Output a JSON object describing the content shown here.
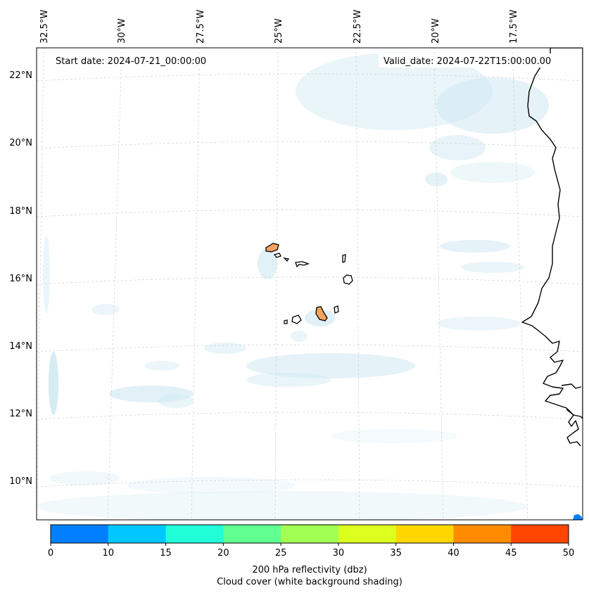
{
  "header": {
    "start_date": "Start date: 2024-07-21_00:00:00",
    "valid_date": "Valid_date: 2024-07-22T15:00:00.00"
  },
  "axes": {
    "longitude_labels": [
      "32.5°W",
      "30°W",
      "27.5°W",
      "25°W",
      "22.5°W",
      "20°W",
      "17.5°W"
    ],
    "latitude_labels": [
      "22°N",
      "20°N",
      "18°N",
      "16°N",
      "14°N",
      "12°N",
      "10°N"
    ]
  },
  "colorbar": {
    "ticks": [
      "0",
      "10",
      "15",
      "20",
      "25",
      "30",
      "35",
      "40",
      "45",
      "50"
    ],
    "colors": [
      "#0080ff",
      "#00c8ff",
      "#20ffd8",
      "#60ff90",
      "#a0ff50",
      "#dcff1e",
      "#ffd700",
      "#ff8c00",
      "#ff4500"
    ],
    "label_line1": "200 hPa reflectivity (dbz)",
    "label_line2": "Cloud cover (white background shading)"
  },
  "map": {
    "land_color": "#f4a460",
    "cloud_color": "#cfe8f2",
    "coast_color": "#000000"
  }
}
